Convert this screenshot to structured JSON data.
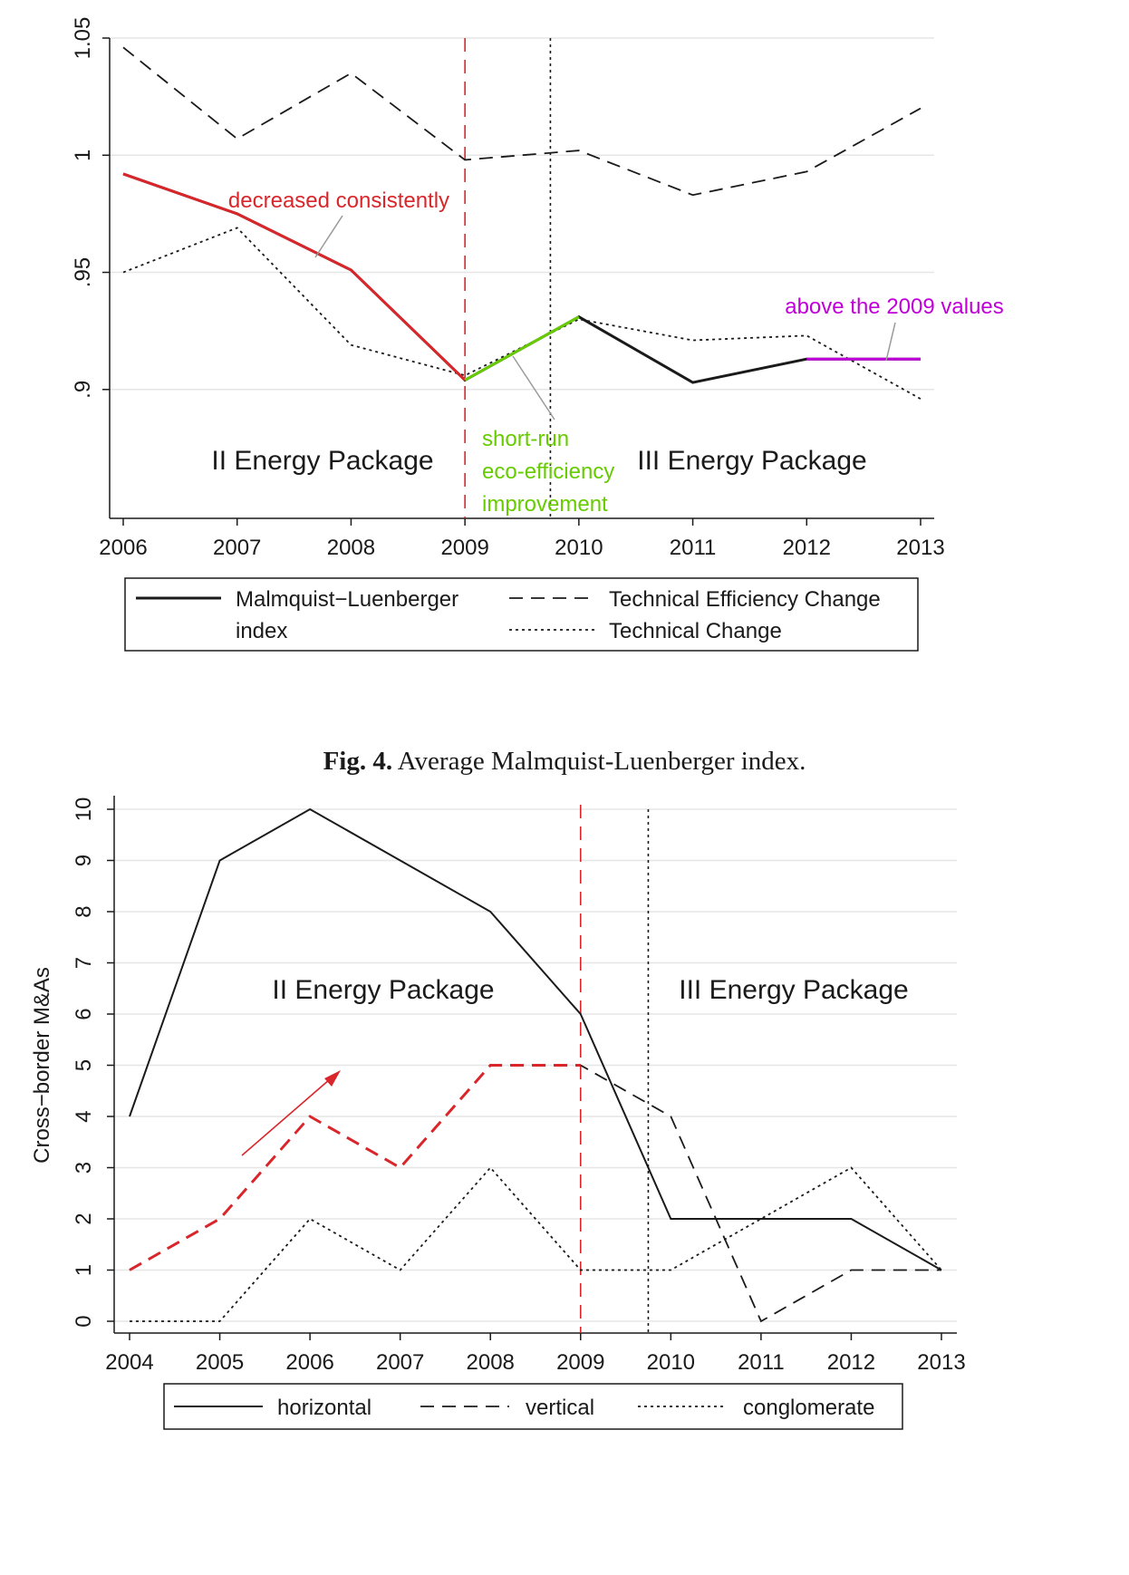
{
  "colors": {
    "series": "#1a1a1a",
    "grid": "#e6e6e6",
    "red": "#d9262b",
    "green": "#66cc00",
    "purple": "#c000d8",
    "annotation_line": "#9a9a9a"
  },
  "figure_caption": {
    "label": "Fig. 4.",
    "text": " Average Malmquist-Luenberger index."
  },
  "chart_data": [
    {
      "type": "line",
      "title": "",
      "xlabel": "",
      "ylabel": "",
      "x": [
        2006,
        2007,
        2008,
        2009,
        2010,
        2011,
        2012,
        2013
      ],
      "xlim": [
        2006,
        2013
      ],
      "ylim": [
        0.845,
        1.05
      ],
      "yticks": [
        0.9,
        0.95,
        1,
        1.05
      ],
      "ytick_labels": [
        ".9",
        ".95",
        "1",
        "1.05"
      ],
      "grid": true,
      "series": [
        {
          "name": "Malmquist−Luenberger index",
          "style": "solid",
          "values": [
            0.992,
            0.975,
            0.951,
            0.904,
            0.931,
            0.903,
            0.913,
            0.913
          ]
        },
        {
          "name": "Technical Efficiency Change",
          "style": "dashed",
          "values": [
            1.046,
            1.007,
            1.035,
            0.998,
            1.002,
            0.983,
            0.993,
            1.02
          ]
        },
        {
          "name": "Technical Change",
          "style": "dotted",
          "values": [
            0.95,
            0.969,
            0.919,
            0.906,
            0.93,
            0.921,
            0.923,
            0.896
          ]
        }
      ],
      "legend_entries": [
        {
          "line1": "Malmquist−Luenberger",
          "line2": "index",
          "style": "solid"
        },
        {
          "line1": "Technical Efficiency Change",
          "style": "dashed"
        },
        {
          "line1": "Technical Change",
          "style": "dotted"
        }
      ],
      "vlines": [
        {
          "x": 2009,
          "style": "dashed",
          "color": "#d9262b"
        },
        {
          "x": 2009.75,
          "style": "dotted",
          "color": "#1a1a1a"
        }
      ],
      "highlights": [
        {
          "from": 2006,
          "to": 2009,
          "color": "#d9262b"
        },
        {
          "from": 2009,
          "to": 2010,
          "color": "#66cc00"
        },
        {
          "from": 2012,
          "to": 2013,
          "color": "#c000d8"
        }
      ],
      "annotations": {
        "decreased": "decreased consistently",
        "short_run": [
          "short-run",
          "eco-efficiency",
          "improvement"
        ],
        "above": "above the 2009 values",
        "period_ii": "II Energy Package",
        "period_iii": "III Energy Package"
      }
    },
    {
      "type": "line",
      "title": "",
      "xlabel": "",
      "ylabel": "Cross−border M&As",
      "x": [
        2004,
        2005,
        2006,
        2007,
        2008,
        2009,
        2010,
        2011,
        2012,
        2013
      ],
      "xlim": [
        2004,
        2013
      ],
      "ylim": [
        0,
        10
      ],
      "yticks": [
        0,
        1,
        2,
        3,
        4,
        5,
        6,
        7,
        8,
        9,
        10
      ],
      "grid": true,
      "series": [
        {
          "name": "horizontal",
          "style": "solid",
          "values": [
            4,
            9,
            10,
            9,
            8,
            6,
            2,
            2,
            2,
            1
          ]
        },
        {
          "name": "vertical",
          "style": "dashed",
          "values": [
            1,
            2,
            4,
            3,
            5,
            5,
            4,
            0,
            1,
            1
          ]
        },
        {
          "name": "conglomerate",
          "style": "dotted",
          "values": [
            0,
            0,
            2,
            1,
            3,
            1,
            1,
            2,
            3,
            1
          ]
        }
      ],
      "vlines": [
        {
          "x": 2009,
          "style": "dashed",
          "color": "#d9262b"
        },
        {
          "x": 2009.75,
          "style": "dotted",
          "color": "#1a1a1a"
        }
      ],
      "highlights": [
        {
          "series": 1,
          "from": 2004,
          "to": 2009,
          "color": "#d9262b"
        }
      ],
      "annotations": {
        "period_ii": "II Energy Package",
        "period_iii": "III Energy Package"
      }
    }
  ]
}
